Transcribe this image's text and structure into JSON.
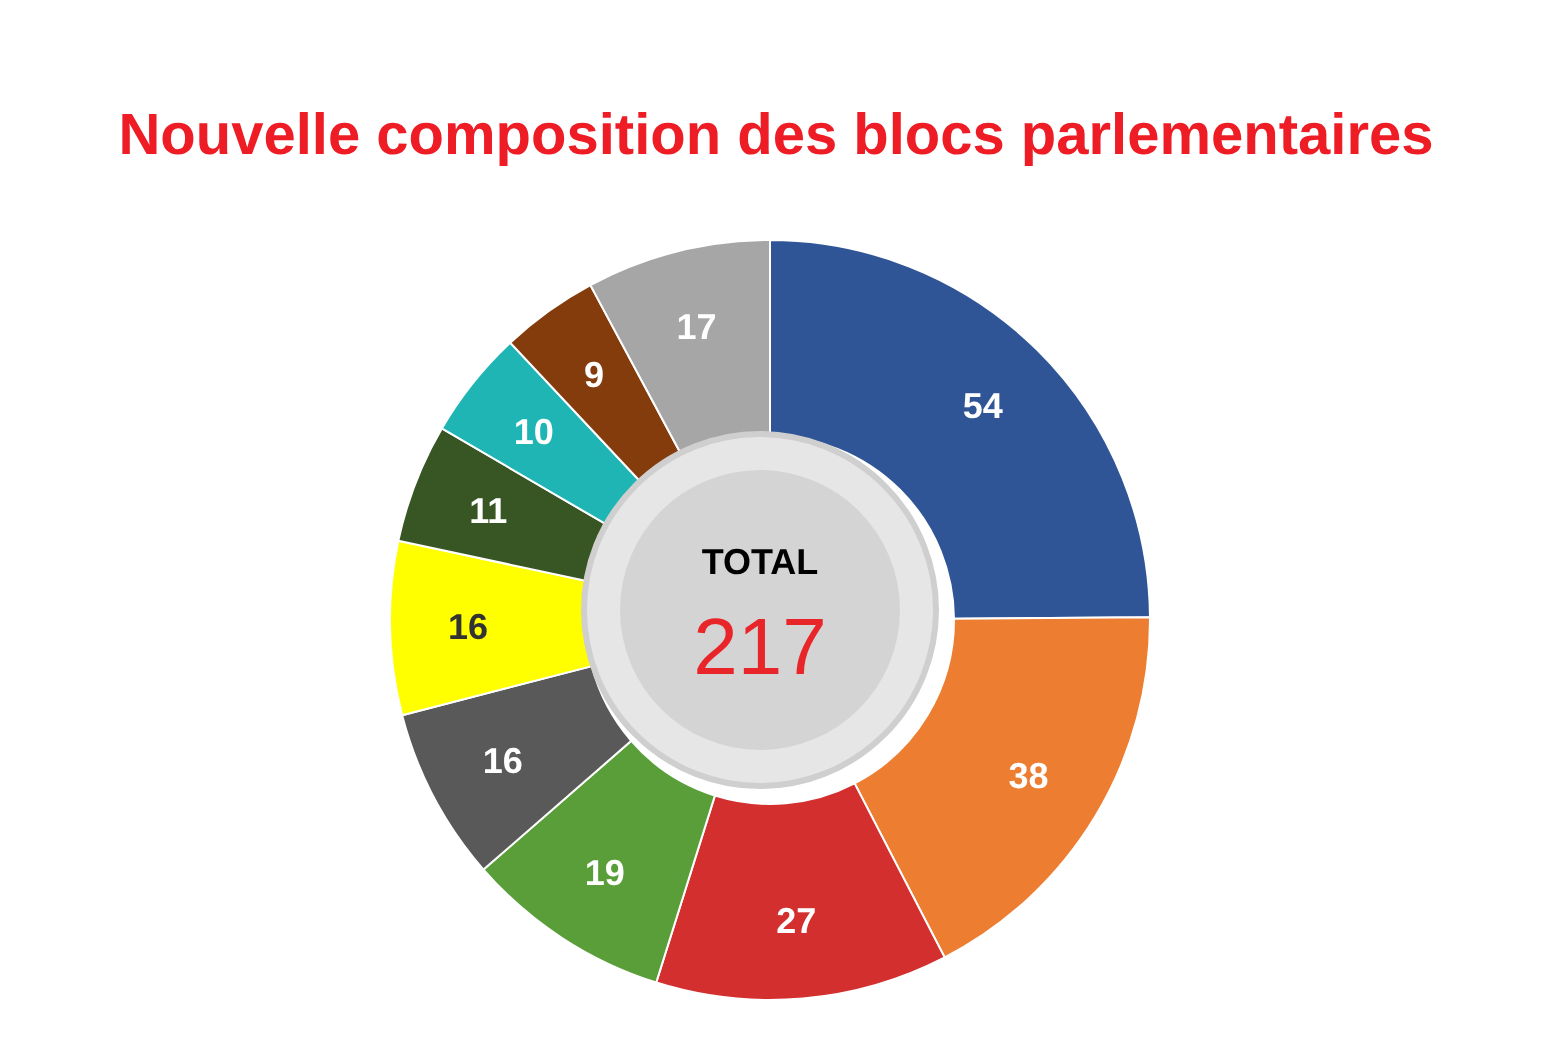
{
  "chart_data": {
    "type": "donut",
    "title": "Nouvelle composition des blocs parlementaires",
    "categories": [
      null,
      null,
      null,
      null,
      null,
      null,
      null,
      null,
      null,
      null
    ],
    "values": [
      54,
      38,
      27,
      19,
      16,
      16,
      11,
      10,
      9,
      17
    ],
    "colors": [
      "#2f5597",
      "#ed7d31",
      "#d32f2f",
      "#5a9e3a",
      "#595959",
      "#ffff00",
      "#375623",
      "#1fb5b5",
      "#843c0c",
      "#a6a6a6"
    ],
    "data_labels": true,
    "annotations": [
      "TOTAL",
      "217"
    ]
  }
}
